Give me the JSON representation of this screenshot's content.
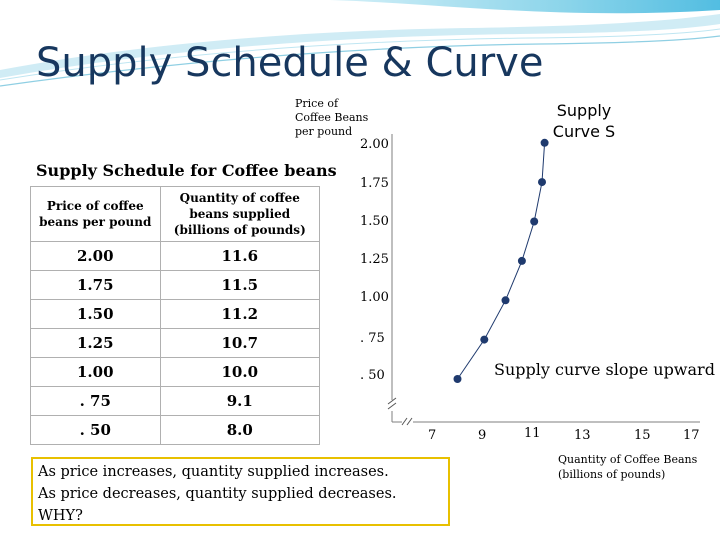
{
  "title": "Supply Schedule & Curve",
  "table": {
    "title": "Supply Schedule for Coffee beans",
    "headers": [
      "Price of coffee beans per pound",
      "Quantity of coffee beans supplied (billions of pounds)"
    ],
    "rows": [
      {
        "price": "2.00",
        "quantity": "11.6"
      },
      {
        "price": "1.75",
        "quantity": "11.5"
      },
      {
        "price": "1.50",
        "quantity": "11.2"
      },
      {
        "price": "1.25",
        "quantity": "10.7"
      },
      {
        "price": "1.00",
        "quantity": "10.0"
      },
      {
        "price": ". 75",
        "quantity": "9.1"
      },
      {
        "price": ". 50",
        "quantity": "8.0"
      }
    ]
  },
  "graph": {
    "y_label": [
      "Price of",
      "Coffee Beans",
      "per pound"
    ],
    "curve_label": [
      "Supply",
      "Curve S"
    ],
    "slope_label": "Supply curve slope upward",
    "x_label": [
      "Quantity of Coffee Beans",
      "(billions of pounds)"
    ],
    "y_ticks": [
      "2.00",
      "1.75",
      "1.50",
      "1.25",
      "1.00",
      ". 75",
      ". 50"
    ],
    "x_ticks": [
      "7",
      "9",
      "11",
      "13",
      "15",
      "17"
    ],
    "colors": {
      "points": "#1f3a6e",
      "curve": "#1f3a6e",
      "axis": "#7f7f7f"
    }
  },
  "chart_data": {
    "type": "line",
    "x": [
      8.0,
      9.1,
      10.0,
      10.7,
      11.2,
      11.5,
      11.6
    ],
    "y": [
      0.5,
      0.75,
      1.0,
      1.25,
      1.5,
      1.75,
      2.0
    ],
    "xlabel": "Quantity of Coffee Beans (billions of pounds)",
    "ylabel": "Price of Coffee Beans per pound",
    "xlim": [
      6,
      17
    ],
    "ylim": [
      0.25,
      2.0
    ],
    "grid": false,
    "series": [
      {
        "name": "Supply Curve S",
        "x": [
          8.0,
          9.1,
          10.0,
          10.7,
          11.2,
          11.5,
          11.6
        ],
        "y": [
          0.5,
          0.75,
          1.0,
          1.25,
          1.5,
          1.75,
          2.0
        ]
      }
    ]
  },
  "summary": {
    "line1": "As price increases, quantity supplied increases.",
    "line2": "As price decreases, quantity supplied decreases.",
    "line3": "WHY?"
  }
}
